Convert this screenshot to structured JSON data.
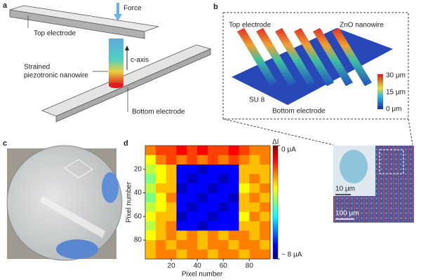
{
  "panels": {
    "a": {
      "label": "a",
      "force": "Force",
      "top_electrode": "Top electrode",
      "c_axis": "c-axis",
      "nanowire": [
        "Strained",
        "piezotronic nanowire"
      ],
      "bottom_electrode": "Bottom electrode"
    },
    "b": {
      "label": "b",
      "top_electrode": "Top electrode",
      "zno": "ZnO nanowire",
      "su8": "SU 8",
      "bottom_electrode": "Bottom electrode",
      "scale": [
        "30 μm",
        "15 μm",
        "0 μm"
      ]
    },
    "c": {
      "label": "c"
    },
    "inset": {
      "scale_small": "10 μm",
      "scale_large": "100 μm"
    }
  },
  "chart_data": {
    "type": "heatmap",
    "panel_label": "d",
    "xlabel": "Pixel number",
    "ylabel": "Pixel number",
    "colorbar_title": "ΔI",
    "xlim": [
      0,
      96
    ],
    "ylim": [
      0,
      96
    ],
    "xticks": [
      20,
      40,
      60,
      80
    ],
    "yticks": [
      20,
      40,
      60,
      80
    ],
    "clim": [
      -8,
      0
    ],
    "cticks": [
      {
        "value": 0,
        "label": "0 μA"
      },
      {
        "value": -8,
        "label": "− 8 μA"
      }
    ],
    "values": [
      [
        -2,
        -1.5,
        -1.5,
        -1,
        -1.5,
        -1,
        -1.5,
        -1.5,
        -1,
        -1.5,
        -2,
        -2
      ],
      [
        -3,
        -2,
        -1.5,
        -2,
        -1.5,
        -2,
        -1.5,
        -2,
        -1.5,
        -2,
        -2.5,
        -2
      ],
      [
        -3.5,
        -3,
        -2.5,
        -7,
        -7,
        -7.5,
        -7,
        -7,
        -7,
        -2.5,
        -2.5,
        -2.5
      ],
      [
        -4,
        -3,
        -2.5,
        -7,
        -7.5,
        -7,
        -7,
        -7.5,
        -7,
        -2.5,
        -2,
        -2.5
      ],
      [
        -3.5,
        -2.5,
        -2.5,
        -7.5,
        -7,
        -7,
        -7.5,
        -7,
        -7,
        -3,
        -2.5,
        -2
      ],
      [
        -4,
        -3,
        -2,
        -7,
        -7,
        -7.5,
        -7,
        -7,
        -7.5,
        -2.5,
        -2,
        -2.5
      ],
      [
        -3.5,
        -3,
        -2.5,
        -7,
        -7.5,
        -7,
        -7,
        -7.5,
        -7,
        -2.5,
        -2.5,
        -2
      ],
      [
        -3,
        -2.5,
        -2.5,
        -7.5,
        -7,
        -7,
        -7.5,
        -7,
        -7,
        -3,
        -2,
        -2.5
      ],
      [
        -3.5,
        -2.5,
        -2,
        -7,
        -7,
        -7.5,
        -7,
        -7,
        -7,
        -2.5,
        -2.5,
        -2
      ],
      [
        -3,
        -2.5,
        -2,
        -2.5,
        -2,
        -2.5,
        -2,
        -2.5,
        -2,
        -2,
        -2.5,
        -2
      ],
      [
        -2.5,
        -2,
        -2.5,
        -2,
        -2,
        -2.5,
        -2,
        -2,
        -2.5,
        -2,
        -2,
        -2.5
      ],
      [
        -2.5,
        -2,
        -2,
        -2.5,
        -2,
        -2,
        -2.5,
        -2,
        -2,
        -2.5,
        -2,
        -2
      ]
    ]
  }
}
